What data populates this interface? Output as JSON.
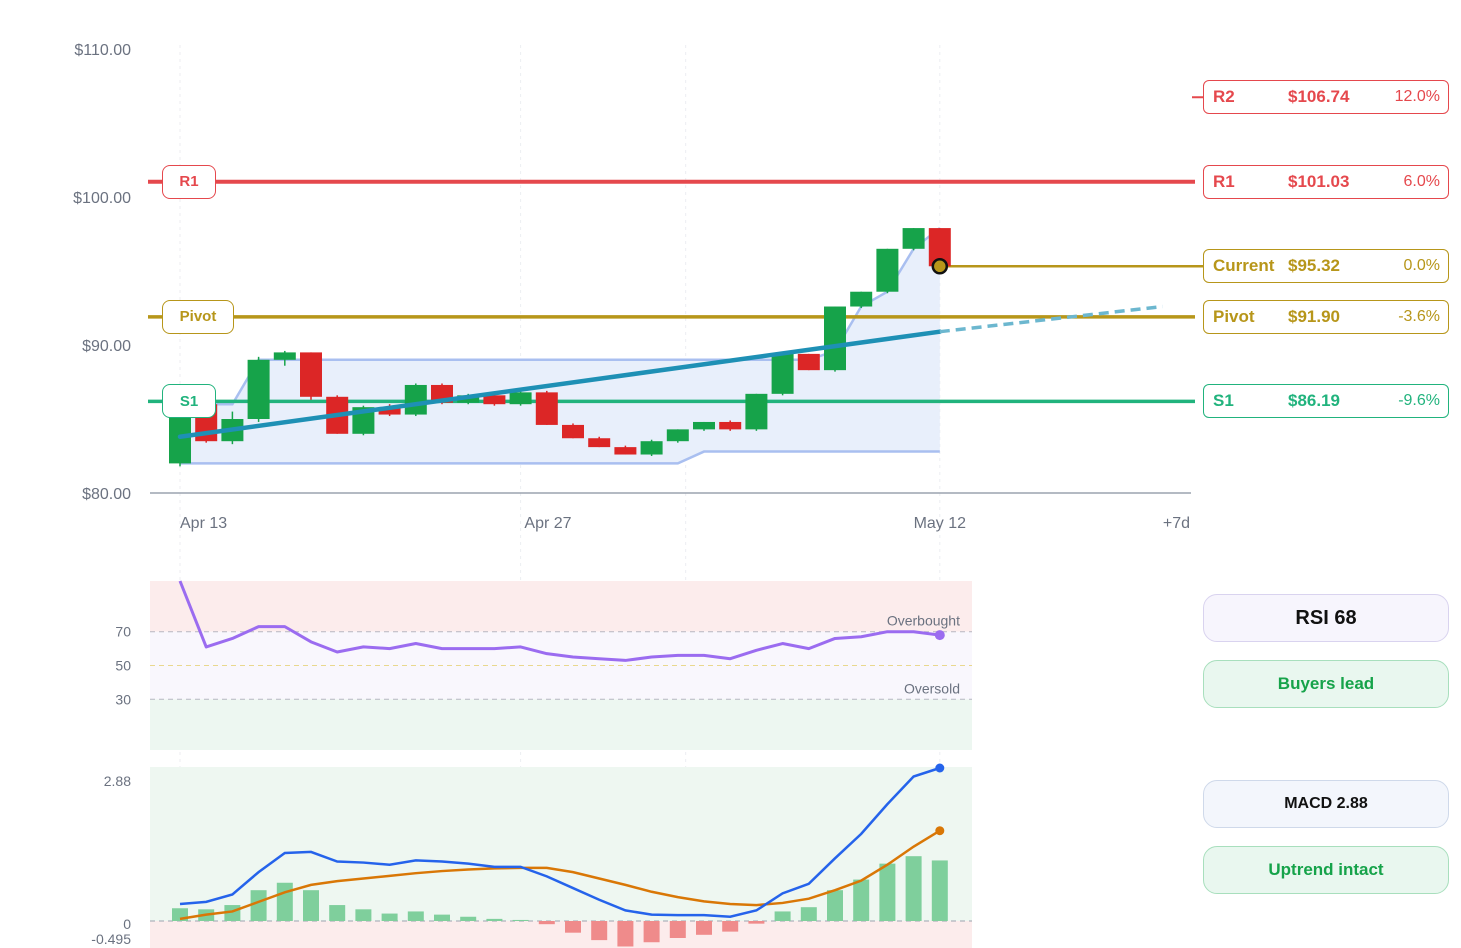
{
  "colors": {
    "r": "#e5484d",
    "pivot": "#b7961a",
    "s1": "#21b37d",
    "up": "#16a34a",
    "down": "#dc2626",
    "trend": "#1e90b5",
    "rsi": "#9b6cf0",
    "macd": "#2563eb",
    "signal": "#d97706"
  },
  "levels": [
    {
      "name": "R2",
      "price": "$106.74",
      "change": "12.0%",
      "value": 106.74,
      "color": "#e5484d",
      "chart_label": ""
    },
    {
      "name": "R1",
      "price": "$101.03",
      "change": "6.0%",
      "value": 101.03,
      "color": "#e5484d",
      "chart_label": "R1"
    },
    {
      "name": "Current",
      "price": "$95.32",
      "change": "0.0%",
      "value": 95.32,
      "color": "#b7961a",
      "chart_label": ""
    },
    {
      "name": "Pivot",
      "price": "$91.90",
      "change": "-3.6%",
      "value": 91.9,
      "color": "#b7961a",
      "chart_label": "Pivot"
    },
    {
      "name": "S1",
      "price": "$86.19",
      "change": "-9.6%",
      "value": 86.19,
      "color": "#21b37d",
      "chart_label": "S1"
    }
  ],
  "cards": {
    "rsi": "RSI 68",
    "rsi_status": "Buyers lead",
    "macd": "MACD 2.88",
    "macd_status": "Uptrend intact"
  },
  "rsi_zone_labels": {
    "overbought": "Overbought",
    "oversold": "Oversold"
  },
  "chart_data": [
    {
      "type": "candlestick",
      "title": "",
      "yticks": [
        "$110.00",
        "$100.00",
        "$90.00",
        "$80.00"
      ],
      "ylim": [
        80,
        110
      ],
      "xticks": [
        {
          "label": "Apr 13",
          "day": 0
        },
        {
          "label": "Apr 27",
          "day": 13
        },
        {
          "label": "May 12",
          "day": 29
        },
        {
          "label": "+7d",
          "day": 38
        }
      ],
      "candles": [
        {
          "o": 82.0,
          "h": 86.5,
          "l": 81.8,
          "c": 86.0
        },
        {
          "o": 86.0,
          "h": 86.3,
          "l": 83.4,
          "c": 83.5
        },
        {
          "o": 83.5,
          "h": 85.5,
          "l": 83.3,
          "c": 85.0
        },
        {
          "o": 85.0,
          "h": 89.2,
          "l": 84.8,
          "c": 89.0
        },
        {
          "o": 89.0,
          "h": 89.6,
          "l": 88.6,
          "c": 89.5
        },
        {
          "o": 89.5,
          "h": 89.5,
          "l": 86.3,
          "c": 86.5
        },
        {
          "o": 86.5,
          "h": 86.6,
          "l": 84.0,
          "c": 84.0
        },
        {
          "o": 84.0,
          "h": 85.9,
          "l": 83.9,
          "c": 85.8
        },
        {
          "o": 85.8,
          "h": 86.0,
          "l": 85.2,
          "c": 85.3
        },
        {
          "o": 85.3,
          "h": 87.4,
          "l": 85.2,
          "c": 87.3
        },
        {
          "o": 87.3,
          "h": 87.4,
          "l": 86.0,
          "c": 86.1
        },
        {
          "o": 86.1,
          "h": 86.7,
          "l": 86.0,
          "c": 86.6
        },
        {
          "o": 86.6,
          "h": 86.7,
          "l": 85.9,
          "c": 86.0
        },
        {
          "o": 86.0,
          "h": 86.9,
          "l": 85.9,
          "c": 86.8
        },
        {
          "o": 86.8,
          "h": 86.9,
          "l": 84.6,
          "c": 84.6
        },
        {
          "o": 84.6,
          "h": 84.7,
          "l": 83.7,
          "c": 83.7
        },
        {
          "o": 83.7,
          "h": 83.8,
          "l": 83.1,
          "c": 83.1
        },
        {
          "o": 83.1,
          "h": 83.2,
          "l": 82.6,
          "c": 82.6
        },
        {
          "o": 82.6,
          "h": 83.6,
          "l": 82.5,
          "c": 83.5
        },
        {
          "o": 83.5,
          "h": 84.3,
          "l": 83.4,
          "c": 84.3
        },
        {
          "o": 84.3,
          "h": 84.8,
          "l": 84.2,
          "c": 84.8
        },
        {
          "o": 84.8,
          "h": 84.9,
          "l": 84.2,
          "c": 84.3
        },
        {
          "o": 84.3,
          "h": 86.7,
          "l": 84.2,
          "c": 86.7
        },
        {
          "o": 86.7,
          "h": 89.5,
          "l": 86.6,
          "c": 89.4
        },
        {
          "o": 89.4,
          "h": 89.4,
          "l": 88.3,
          "c": 88.3
        },
        {
          "o": 88.3,
          "h": 92.6,
          "l": 88.2,
          "c": 92.6
        },
        {
          "o": 92.6,
          "h": 93.6,
          "l": 92.5,
          "c": 93.6
        },
        {
          "o": 93.6,
          "h": 96.5,
          "l": 93.5,
          "c": 96.5
        },
        {
          "o": 96.5,
          "h": 97.9,
          "l": 96.4,
          "c": 97.9
        },
        {
          "o": 97.9,
          "h": 97.9,
          "l": 95.3,
          "c": 95.32
        }
      ],
      "trend_line": {
        "start": [
          0,
          83.8
        ],
        "end": [
          29,
          90.9
        ],
        "projection_end": [
          37.5,
          92.6
        ]
      },
      "channel_upper": [
        [
          0,
          86.0
        ],
        [
          2,
          86.0
        ],
        [
          3,
          89.0
        ],
        [
          24,
          89.0
        ],
        [
          25,
          89.6
        ],
        [
          26,
          92.6
        ],
        [
          27,
          93.6
        ],
        [
          28,
          96.5
        ],
        [
          29,
          97.9
        ]
      ],
      "channel_lower": [
        [
          0,
          82.0
        ],
        [
          19,
          82.0
        ],
        [
          20,
          82.8
        ],
        [
          29,
          82.8
        ]
      ]
    },
    {
      "type": "line",
      "title": "RSI",
      "yticks": [
        "70",
        "50",
        "30"
      ],
      "ylim": [
        0,
        100
      ],
      "series": [
        {
          "name": "",
          "values": [
            100,
            61,
            66,
            73,
            73,
            64,
            58,
            61,
            60,
            63,
            60,
            60,
            60,
            61,
            57,
            55,
            54,
            53,
            55,
            56,
            56,
            54,
            59,
            63,
            60,
            66,
            67,
            70,
            70,
            68
          ]
        }
      ]
    },
    {
      "type": "bar",
      "title": "MACD",
      "yticks": [
        "2.88",
        "0",
        "-0.495"
      ],
      "ylim": [
        -0.495,
        2.88
      ],
      "histogram": [
        0.24,
        0.22,
        0.3,
        0.58,
        0.72,
        0.58,
        0.3,
        0.22,
        0.14,
        0.18,
        0.12,
        0.08,
        0.04,
        0.02,
        -0.06,
        -0.22,
        -0.36,
        -0.48,
        -0.4,
        -0.32,
        -0.26,
        -0.2,
        -0.05,
        0.18,
        0.26,
        0.58,
        0.78,
        1.08,
        1.22,
        1.14
      ],
      "series": [
        {
          "name": "",
          "values": [
            0.32,
            0.36,
            0.5,
            0.92,
            1.28,
            1.3,
            1.12,
            1.1,
            1.06,
            1.14,
            1.12,
            1.08,
            1.02,
            1.02,
            0.84,
            0.62,
            0.4,
            0.2,
            0.12,
            0.11,
            0.11,
            0.08,
            0.2,
            0.52,
            0.7,
            1.18,
            1.64,
            2.2,
            2.72,
            2.88
          ]
        },
        {
          "name": "",
          "values": [
            0.04,
            0.12,
            0.18,
            0.36,
            0.54,
            0.68,
            0.75,
            0.8,
            0.85,
            0.9,
            0.94,
            0.97,
            0.99,
            1.0,
            1.0,
            0.92,
            0.8,
            0.68,
            0.55,
            0.45,
            0.37,
            0.32,
            0.3,
            0.34,
            0.42,
            0.58,
            0.76,
            1.06,
            1.4,
            1.7
          ]
        }
      ]
    }
  ]
}
